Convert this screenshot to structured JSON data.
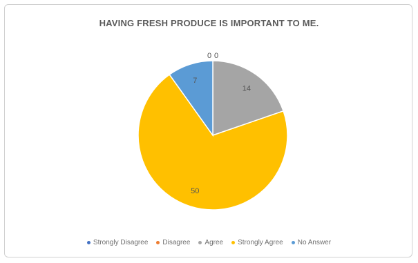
{
  "chart_data": {
    "type": "pie",
    "title": "HAVING FRESH PRODUCE IS IMPORTANT TO ME.",
    "categories": [
      "Strongly Disagree",
      "Disagree",
      "Agree",
      "Strongly Agree",
      "No Answer"
    ],
    "values": [
      0,
      0,
      14,
      50,
      7
    ],
    "data_labels": [
      "0",
      "0",
      "14",
      "50",
      "7"
    ],
    "colors": [
      "#4472c4",
      "#ed7d31",
      "#a5a5a5",
      "#ffc000",
      "#5b9bd5"
    ],
    "legend_position": "bottom"
  }
}
